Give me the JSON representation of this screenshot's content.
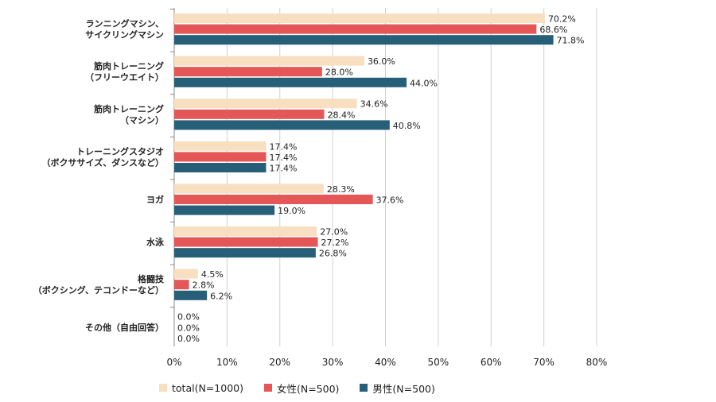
{
  "chart_data": {
    "type": "bar",
    "orientation": "horizontal",
    "categories": [
      [
        "ランニングマシン、",
        "サイクリングマシン"
      ],
      [
        "筋肉トレーニング",
        "（フリーウエイト）"
      ],
      [
        "筋肉トレーニング",
        "（マシン）"
      ],
      [
        "トレーニングスタジオ",
        "（ボクササイズ、ダンスなど）"
      ],
      [
        "ヨガ"
      ],
      [
        "水泳"
      ],
      [
        "格闘技",
        "（ボクシング、テコンドーなど）"
      ],
      [
        "その他（自由回答）"
      ]
    ],
    "series": [
      {
        "name": "total(N=1000)",
        "color": "#f8dfc0",
        "values": [
          70.2,
          36.0,
          34.6,
          17.4,
          28.3,
          27.0,
          4.5,
          0.0
        ]
      },
      {
        "name": "女性(N=500)",
        "color": "#e55757",
        "values": [
          68.6,
          28.0,
          28.4,
          17.4,
          37.6,
          27.2,
          2.8,
          0.0
        ]
      },
      {
        "name": "男性(N=500)",
        "color": "#275f78",
        "values": [
          71.8,
          44.0,
          40.8,
          17.4,
          19.0,
          26.8,
          6.2,
          0.0
        ]
      }
    ],
    "value_labels": [
      [
        "70.2%",
        "68.6%",
        "71.8%"
      ],
      [
        "36.0%",
        "28.0%",
        "44.0%"
      ],
      [
        "34.6%",
        "28.4%",
        "40.8%"
      ],
      [
        "17.4%",
        "17.4%",
        "17.4%"
      ],
      [
        "28.3%",
        "37.6%",
        "19.0%"
      ],
      [
        "27.0%",
        "27.2%",
        "26.8%"
      ],
      [
        "4.5%",
        "2.8%",
        "6.2%"
      ],
      [
        "0.0%",
        "0.0%",
        "0.0%"
      ]
    ],
    "x_ticks": [
      "0%",
      "10%",
      "20%",
      "30%",
      "40%",
      "50%",
      "60%",
      "70%",
      "80%"
    ],
    "xlim": [
      0,
      80
    ],
    "grid": true,
    "legend_position": "bottom"
  },
  "legend": {
    "total": "total(N=1000)",
    "female": "女性(N=500)",
    "male": "男性(N=500)"
  }
}
